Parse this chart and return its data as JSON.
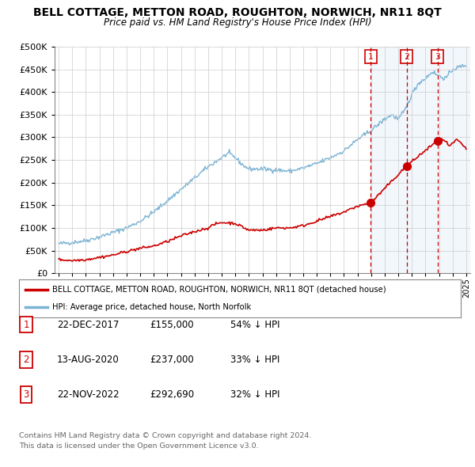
{
  "title": "BELL COTTAGE, METTON ROAD, ROUGHTON, NORWICH, NR11 8QT",
  "subtitle": "Price paid vs. HM Land Registry's House Price Index (HPI)",
  "legend_line1": "BELL COTTAGE, METTON ROAD, ROUGHTON, NORWICH, NR11 8QT (detached house)",
  "legend_line2": "HPI: Average price, detached house, North Norfolk",
  "footer1": "Contains HM Land Registry data © Crown copyright and database right 2024.",
  "footer2": "This data is licensed under the Open Government Licence v3.0.",
  "sales": [
    {
      "num": 1,
      "date": "22-DEC-2017",
      "price": "£155,000",
      "pct": "54% ↓ HPI",
      "year": 2017.97
    },
    {
      "num": 2,
      "date": "13-AUG-2020",
      "price": "£237,000",
      "pct": "33% ↓ HPI",
      "year": 2020.62
    },
    {
      "num": 3,
      "date": "22-NOV-2022",
      "price": "£292,690",
      "pct": "32% ↓ HPI",
      "year": 2022.89
    }
  ],
  "sale_values": [
    155000,
    237000,
    292690
  ],
  "hpi_color": "#7ab3d4",
  "price_color": "#cc0000",
  "vline_color": "#cc0000",
  "shade_color": "#ddeeff",
  "bg_color": "#ffffff",
  "grid_color": "#cccccc",
  "ylim": [
    0,
    500000
  ],
  "xlim_start": 1994.7,
  "xlim_end": 2025.3,
  "hpi_anchors_x": [
    1995,
    1996,
    1997,
    1998,
    1999,
    2000,
    2001,
    2002,
    2003,
    2004,
    2005,
    2006,
    2007,
    2007.5,
    2008,
    2008.5,
    2009,
    2010,
    2011,
    2012,
    2013,
    2014,
    2015,
    2016,
    2017,
    2018,
    2019,
    2019.5,
    2020,
    2020.5,
    2021,
    2021.5,
    2022,
    2022.5,
    2023,
    2023.5,
    2024,
    2025
  ],
  "hpi_anchors_y": [
    65000,
    68000,
    72000,
    80000,
    90000,
    100000,
    115000,
    135000,
    160000,
    185000,
    210000,
    235000,
    255000,
    265000,
    255000,
    240000,
    230000,
    230000,
    228000,
    225000,
    232000,
    242000,
    255000,
    270000,
    295000,
    315000,
    340000,
    350000,
    340000,
    360000,
    395000,
    420000,
    430000,
    445000,
    435000,
    430000,
    450000,
    460000
  ],
  "price_anchors_x": [
    1995,
    1996,
    1997,
    1998,
    1999,
    2000,
    2001,
    2002,
    2003,
    2004,
    2005,
    2006,
    2006.5,
    2007,
    2008,
    2009,
    2010,
    2011,
    2012,
    2013,
    2014,
    2015,
    2016,
    2017,
    2017.97,
    2020.62,
    2022.89,
    2023.3,
    2023.8,
    2024.3,
    2025
  ],
  "price_anchors_y": [
    30000,
    28000,
    30000,
    35000,
    40000,
    48000,
    55000,
    60000,
    70000,
    82000,
    92000,
    100000,
    108000,
    112000,
    110000,
    95000,
    95000,
    100000,
    100000,
    105000,
    115000,
    125000,
    135000,
    148000,
    155000,
    237000,
    292690,
    295000,
    280000,
    295000,
    275000
  ]
}
